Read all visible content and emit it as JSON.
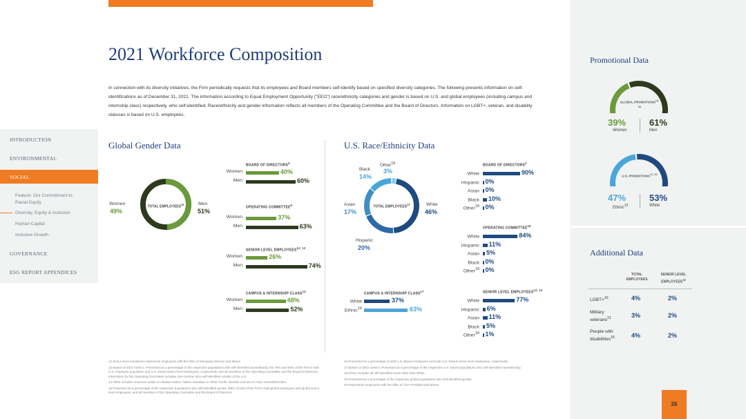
{
  "page": {
    "title": "2021 Workforce Composition",
    "intro": "In connection with its diversity initiatives, the Firm periodically requests that its employees and Board members self-identify based on specified diversity categories. The following presents information on self-identifications as of December 31, 2021. The information according to Equal Employment Opportunity (\"EEO\") race/ethnicity categories and gender is based on U.S. and global employees (including campus and internship class) respectively, who self-identified. Race/ethnicity and gender information reflects all members of the Operating Committee and the Board of Directors. Information on LGBT+, veteran, and disability statuses is based on U.S. employees.",
    "page_number": "26"
  },
  "nav": {
    "items": [
      "INTRODUCTION",
      "ENVIRONMENTAL",
      "SOCIAL",
      "GOVERNANCE",
      "ESG REPORT APPENDICES"
    ],
    "sub_items": [
      "Feature: Our Commitment to Racial Equity",
      "Diversity, Equity & Inclusion",
      "Human Capital",
      "Inclusive Growth"
    ]
  },
  "gender": {
    "title": "Global Gender Data",
    "donut": {
      "center": "TOTAL EMPLOYEES",
      "center_sup": "11",
      "women_label": "Women",
      "women_pct": "49%",
      "men_label": "Men",
      "men_pct": "51%",
      "women": 49,
      "men": 51
    },
    "sections": [
      {
        "title": "BOARD OF DIRECTORS",
        "sup": "4",
        "rows": [
          {
            "label": "Women",
            "pct": "40%",
            "value": 40
          },
          {
            "label": "Men",
            "pct": "60%",
            "value": 60
          }
        ]
      },
      {
        "title": "OPERATING COMMITTEE",
        "sup": "9",
        "rows": [
          {
            "label": "Women",
            "pct": "37%",
            "value": 37
          },
          {
            "label": "Men",
            "pct": "63%",
            "value": 63
          }
        ]
      },
      {
        "title": "SENIOR LEVEL EMPLOYEES",
        "sup": "12, 13",
        "rows": [
          {
            "label": "Women",
            "pct": "26%",
            "value": 26
          },
          {
            "label": "Men",
            "pct": "74%",
            "value": 74
          }
        ]
      },
      {
        "title": "CAMPUS & INTERNSHIP CLASS",
        "sup": "13",
        "rows": [
          {
            "label": "Women",
            "pct": "48%",
            "value": 48
          },
          {
            "label": "Men",
            "pct": "52%",
            "value": 52
          }
        ]
      }
    ]
  },
  "race": {
    "title": "U.S. Race/Ethnicity Data",
    "donut": {
      "center": "TOTAL EMPLOYEES",
      "center_sup": "17",
      "slices": [
        {
          "label": "White",
          "pct": "46%",
          "value": 46,
          "color": "#1e4a80"
        },
        {
          "label": "Hispanic",
          "pct": "20%",
          "value": 20,
          "color": "#2f6aa8"
        },
        {
          "label": "Asian",
          "pct": "17%",
          "value": 17,
          "color": "#3f8fc4"
        },
        {
          "label": "Black",
          "pct": "14%",
          "value": 14,
          "color": "#4aa6d8"
        },
        {
          "label": "Other",
          "pct": "3%",
          "value": 3,
          "color": "#8fd0f0",
          "sup": "18"
        }
      ]
    },
    "campus": {
      "title": "CAMPUS & INTERNSHIP CLASS",
      "sup": "17",
      "rows": [
        {
          "label": "White",
          "pct": "37%",
          "value": 37
        },
        {
          "label": "Ethnic",
          "sup": "19",
          "pct": "63%",
          "value": 63
        }
      ]
    },
    "sections": [
      {
        "title": "BOARD OF DIRECTORS",
        "sup": "4",
        "rows": [
          {
            "label": "White",
            "pct": "90%",
            "value": 90
          },
          {
            "label": "Hispanic",
            "pct": "0%",
            "value": 0
          },
          {
            "label": "Asian",
            "pct": "0%",
            "value": 0
          },
          {
            "label": "Black",
            "pct": "10%",
            "value": 10
          },
          {
            "label": "Other",
            "sup": "18",
            "pct": "0%",
            "value": 0
          }
        ]
      },
      {
        "title": "OPERATING COMMITTEE",
        "sup": "18",
        "rows": [
          {
            "label": "White",
            "pct": "84%",
            "value": 84
          },
          {
            "label": "Hispanic",
            "pct": "11%",
            "value": 11
          },
          {
            "label": "Asian",
            "pct": "5%",
            "value": 5
          },
          {
            "label": "Black",
            "pct": "0%",
            "value": 0
          },
          {
            "label": "Other",
            "sup": "18",
            "pct": "0%",
            "value": 0
          }
        ]
      },
      {
        "title": "SENIOR LEVEL EMPLOYEES",
        "sup": "12, 13",
        "rows": [
          {
            "label": "White",
            "pct": "77%",
            "value": 77
          },
          {
            "label": "Hispanic",
            "pct": "6%",
            "value": 6
          },
          {
            "label": "Asian",
            "pct": "11%",
            "value": 11
          },
          {
            "label": "Black",
            "pct": "5%",
            "value": 5
          },
          {
            "label": "Other",
            "sup": "18",
            "pct": "1%",
            "value": 1
          }
        ]
      }
    ]
  },
  "promotional": {
    "title": "Promotional Data",
    "global": {
      "label": "GLOBAL PROMOTIONS",
      "sup": "14, 20",
      "left_pct": "39%",
      "left_label": "Women",
      "right_pct": "61%",
      "right_label": "Men",
      "left_value": 39,
      "right_value": 61
    },
    "us": {
      "label": "U.S. PROMOTIONS",
      "sup": "17, 20",
      "left_pct": "47%",
      "left_label": "Ethnic",
      "left_sup": "19",
      "right_pct": "53%",
      "right_label": "White",
      "left_value": 47,
      "right_value": 53
    }
  },
  "additional": {
    "title": "Additional Data",
    "col1": "TOTAL EMPLOYEES",
    "col2": "SENIOR LEVEL EMPLOYEES",
    "col2_sup": "12",
    "rows": [
      {
        "label": "LGBT+",
        "sup": "16",
        "total": "4%",
        "senior": "2%"
      },
      {
        "label": "Military veterans",
        "sup": "21",
        "total": "3%",
        "senior": "2%"
      },
      {
        "label": "People with disabilities",
        "sup": "16",
        "total": "4%",
        "senior": "2%"
      }
    ]
  },
  "footnotes": {
    "left": [
      "12 Senior level employees represents employees with the titles of Managing Director and above.",
      "13 Based on EEO metrics. Presented as a percentage of the respective populations with self-identified race/ethnicity (for 76% and 90% of the Firm's total U.S. employee population and U.S. based senior level employees, respectively, and all members of the Operating Committee and the Board of Directors. Information for the Operating Committee includes one member who self-identified outside of the U.S.",
      "14 Other includes American Indian or Alaskan Native, Native Hawaiian or Other Pacific Islander and two or more races/ethnicities.",
      "15 Presented as a percentage of the respective populations who self-identified gender (99% of total of the Firm's total global employees and global senior level employees, and all members of the Operating Committee and the Board of Directors."
    ],
    "right": [
      "16 Presented as a percentage of total U.S.-based employees and total U.S.-based senior level employees, respectively.",
      "17 Based on EEO metrics. Presented as a percentage of the respective U.S.-based populations who self-identified race/ethnicity.",
      "18 Ethnic includes all self-identified races other than White.",
      "19 Presented as a percentage of the respective global populations who self-identified gender.",
      "20 Represents employees with the titles of Vice President and above."
    ]
  }
}
